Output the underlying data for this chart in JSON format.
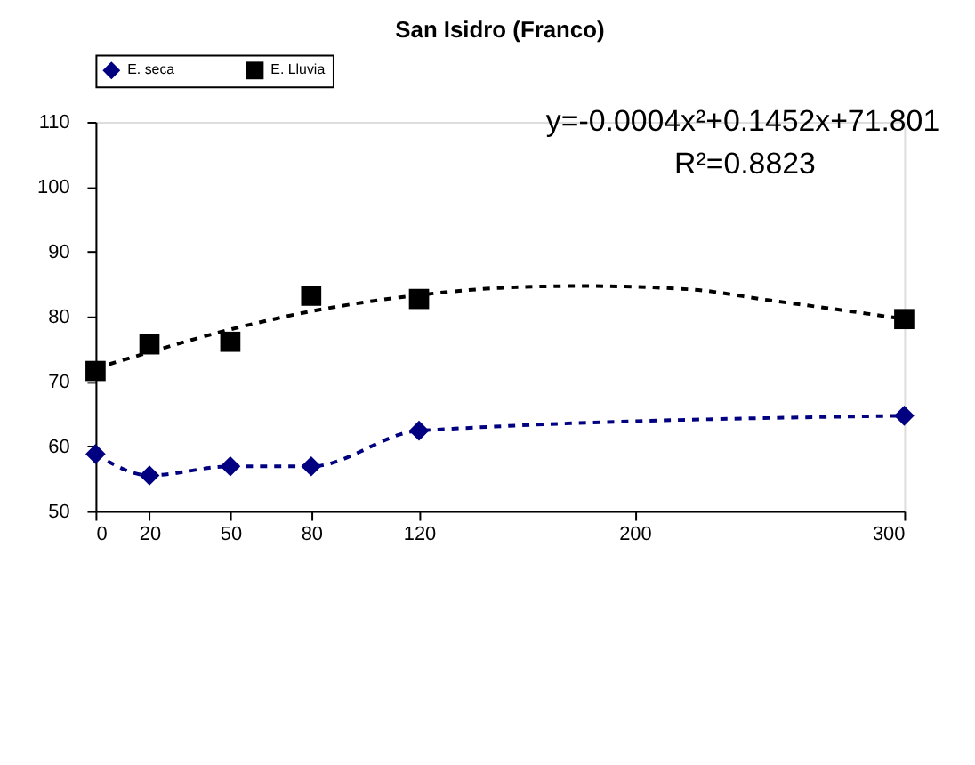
{
  "chart_data": {
    "type": "line",
    "title": "San Isidro (Franco)",
    "x": [
      0,
      20,
      50,
      80,
      120,
      300
    ],
    "xlim": [
      0,
      300
    ],
    "xticks": [
      0,
      20,
      50,
      80,
      120,
      200,
      300
    ],
    "ylim": [
      50,
      110
    ],
    "yticks": [
      50,
      60,
      70,
      80,
      90,
      100,
      110
    ],
    "grid": false,
    "legend": "top",
    "series": [
      {
        "name": "E. seca",
        "color": "#000080",
        "marker": "diamond",
        "line_style": "dashed",
        "values": [
          58.8,
          55.5,
          56.9,
          56.9,
          62.4,
          64.7
        ]
      },
      {
        "name": "E. Lluvia",
        "type": "scatter",
        "color": "#000000",
        "marker": "square",
        "values": [
          71.6,
          75.7,
          76.1,
          83.2,
          82.7,
          79.6
        ]
      },
      {
        "type": "line",
        "color": "#000000",
        "marker": "none",
        "line_style": "dashed",
        "x": [
          0,
          20,
          50,
          80,
          120,
          150,
          180,
          220,
          250,
          280,
          300
        ],
        "values": [
          72.0,
          74.5,
          78.0,
          80.8,
          83.3,
          84.4,
          84.7,
          84.2,
          82.5,
          80.8,
          79.6
        ]
      }
    ],
    "annotations": [
      "y=-0.0004x²+0.1452x+71.801",
      "R²=0.8823"
    ]
  }
}
